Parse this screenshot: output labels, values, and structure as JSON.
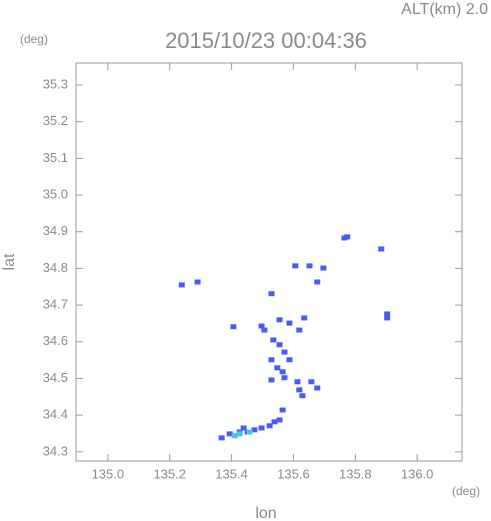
{
  "chart_data": {
    "type": "scatter",
    "title": "2015/10/23 00:04:36",
    "subtitle": "ALT(km) 2.0",
    "y_unit": "(deg)",
    "x_unit": "(deg)",
    "xlabel": "lon",
    "ylabel": "lat",
    "xlim": [
      134.897,
      136.145
    ],
    "ylim": [
      34.275,
      35.36
    ],
    "xticks": [
      {
        "value": 135,
        "label": "135.0"
      },
      135.2,
      135.4,
      135.6,
      135.8,
      {
        "value": 136,
        "label": "136.0"
      }
    ],
    "yticks": [
      34.3,
      34.4,
      34.5,
      34.6,
      34.7,
      34.8,
      34.9,
      {
        "value": 35,
        "label": "35.0"
      },
      35.1,
      35.2,
      35.3
    ],
    "series": [
      {
        "color": "#4a5cf0",
        "x": [
          135.239,
          135.29,
          135.765,
          135.774,
          135.884,
          135.903,
          135.903,
          135.606,
          135.652,
          135.697,
          135.677,
          135.529,
          135.497,
          135.506,
          135.406,
          135.555,
          135.587,
          135.619,
          135.635,
          135.535,
          135.555,
          135.571,
          135.529,
          135.587,
          135.548,
          135.571,
          135.529,
          135.565,
          135.613,
          135.619,
          135.629,
          135.658,
          135.677,
          135.565,
          135.555,
          135.539,
          135.523,
          135.497,
          135.474,
          135.452,
          135.439,
          135.426,
          135.394,
          135.368
        ],
        "y": [
          34.755,
          34.763,
          34.883,
          34.886,
          34.853,
          34.676,
          34.665,
          34.807,
          34.807,
          34.801,
          34.763,
          34.731,
          34.643,
          34.632,
          34.641,
          34.66,
          34.651,
          34.632,
          34.665,
          34.605,
          34.592,
          34.572,
          34.551,
          34.551,
          34.529,
          34.502,
          34.496,
          34.518,
          34.491,
          34.469,
          34.453,
          34.491,
          34.474,
          34.414,
          34.387,
          34.382,
          34.371,
          34.365,
          34.36,
          34.354,
          34.365,
          34.354,
          34.349,
          34.338
        ]
      },
      {
        "color": "#40c8e8",
        "x": [
          135.41,
          135.426,
          135.458
        ],
        "y": [
          34.344,
          34.349,
          34.354
        ]
      }
    ]
  }
}
